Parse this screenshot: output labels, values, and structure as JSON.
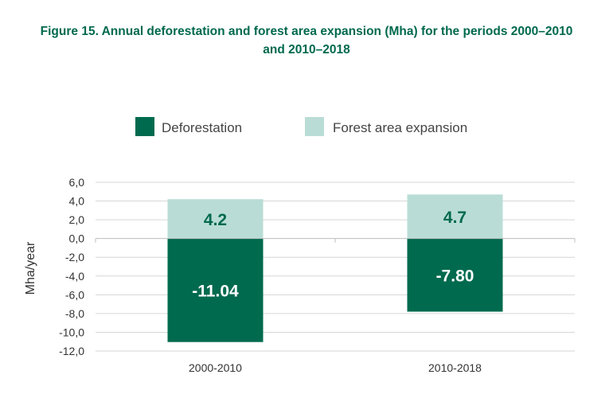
{
  "title": {
    "line1": "Figure 15. Annual deforestation and forest area expansion (Mha) for the periods 2000–2010",
    "line2": "and 2010–2018"
  },
  "chart_data": {
    "type": "bar",
    "stacked": true,
    "categories": [
      "2000-2010",
      "2010-2018"
    ],
    "series": [
      {
        "name": "Deforestation",
        "values": [
          -11.04,
          -7.8
        ],
        "labels": [
          "-11.04",
          "-7.80"
        ],
        "color": "#006a4e",
        "label_color": "#ffffff"
      },
      {
        "name": "Forest area expansion",
        "values": [
          4.2,
          4.7
        ],
        "labels": [
          "4.2",
          "4.7"
        ],
        "color": "#b9ddd6",
        "label_color": "#00694e"
      }
    ],
    "ylabel": "Mha/year",
    "ylim": [
      -12,
      6
    ],
    "yticks": [
      6,
      4,
      2,
      0,
      -2,
      -4,
      -6,
      -8,
      -10,
      -12
    ],
    "ytick_labels": [
      "6,0",
      "4,0",
      "2,0",
      "0,0",
      "-2,0",
      "-4,0",
      "-6,0",
      "-8,0",
      "-10,0",
      "-12,0"
    ],
    "grid": true,
    "legend_position": "top"
  }
}
